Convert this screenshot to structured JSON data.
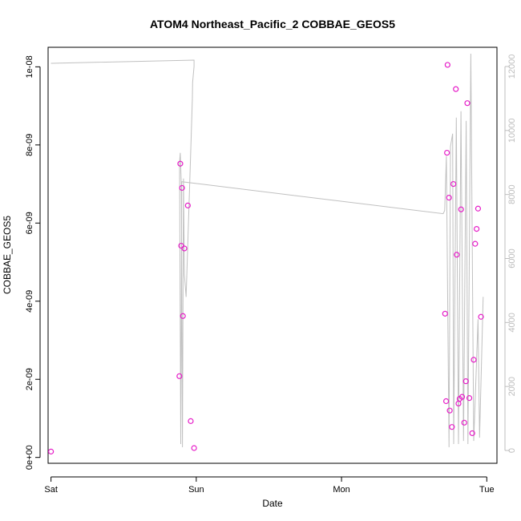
{
  "chart_data": {
    "type": "scatter",
    "title": "ATOM4 Northeast_Pacific_2 COBBAE_GEOS5",
    "xlabel": "Date",
    "ylabel": "COBBAE_GEOS5",
    "x_ticks": [
      "Sat",
      "Sun",
      "Mon",
      "Tue"
    ],
    "xlim": [
      -0.02,
      3.07
    ],
    "ylim": [
      -1.5e-10,
      1.05e-08
    ],
    "y_ticks": [
      {
        "value": 0,
        "label": "0e+00"
      },
      {
        "value": 2e-09,
        "label": "2e-09"
      },
      {
        "value": 4e-09,
        "label": "4e-09"
      },
      {
        "value": 6e-09,
        "label": "6e-09"
      },
      {
        "value": 8e-09,
        "label": "8e-09"
      },
      {
        "value": 1e-08,
        "label": "1e-08"
      }
    ],
    "y2lim": [
      -400,
      12600
    ],
    "y2_ticks": [
      {
        "value": 0,
        "label": "0"
      },
      {
        "value": 2000,
        "label": "2000"
      },
      {
        "value": 4000,
        "label": "4000"
      },
      {
        "value": 6000,
        "label": "6000"
      },
      {
        "value": 8000,
        "label": "8000"
      },
      {
        "value": 10000,
        "label": "10000"
      },
      {
        "value": 12000,
        "label": "12000"
      }
    ],
    "grid": false,
    "colors": {
      "points": "#e61ec8",
      "line": "#c0c0c0"
    },
    "points": [
      {
        "x": 0.0,
        "y": 1.5e-10
      },
      {
        "x": 0.884,
        "y": 2.08e-09
      },
      {
        "x": 0.89,
        "y": 7.52e-09
      },
      {
        "x": 0.896,
        "y": 5.42e-09
      },
      {
        "x": 0.902,
        "y": 6.9e-09
      },
      {
        "x": 0.908,
        "y": 3.62e-09
      },
      {
        "x": 0.918,
        "y": 5.35e-09
      },
      {
        "x": 0.942,
        "y": 6.45e-09
      },
      {
        "x": 0.962,
        "y": 9.3e-10
      },
      {
        "x": 0.985,
        "y": 2.4e-10
      },
      {
        "x": 2.713,
        "y": 3.68e-09
      },
      {
        "x": 2.72,
        "y": 1.44e-09
      },
      {
        "x": 2.726,
        "y": 7.8e-09
      },
      {
        "x": 2.73,
        "y": 1.005e-08
      },
      {
        "x": 2.74,
        "y": 6.65e-09
      },
      {
        "x": 2.745,
        "y": 1.2e-09
      },
      {
        "x": 2.76,
        "y": 7.8e-10
      },
      {
        "x": 2.77,
        "y": 7e-09
      },
      {
        "x": 2.787,
        "y": 9.43e-09
      },
      {
        "x": 2.793,
        "y": 5.19e-09
      },
      {
        "x": 2.805,
        "y": 1.38e-09
      },
      {
        "x": 2.813,
        "y": 1.5e-09
      },
      {
        "x": 2.823,
        "y": 6.35e-09
      },
      {
        "x": 2.83,
        "y": 1.55e-09
      },
      {
        "x": 2.845,
        "y": 8.9e-10
      },
      {
        "x": 2.856,
        "y": 1.95e-09
      },
      {
        "x": 2.866,
        "y": 9.07e-09
      },
      {
        "x": 2.88,
        "y": 1.52e-09
      },
      {
        "x": 2.9,
        "y": 6.2e-10
      },
      {
        "x": 2.91,
        "y": 2.5e-09
      },
      {
        "x": 2.92,
        "y": 5.47e-09
      },
      {
        "x": 2.93,
        "y": 5.85e-09
      },
      {
        "x": 2.94,
        "y": 6.37e-09
      },
      {
        "x": 2.96,
        "y": 3.6e-09
      }
    ],
    "line": [
      [
        0.0,
        12100
      ],
      [
        0.985,
        12200
      ],
      [
        0.985,
        12000
      ],
      [
        0.975,
        11500
      ],
      [
        0.973,
        11000
      ],
      [
        0.965,
        9800
      ],
      [
        0.93,
        4800
      ],
      [
        0.918,
        5500
      ],
      [
        0.912,
        8500
      ],
      [
        0.905,
        100
      ],
      [
        0.897,
        8300
      ],
      [
        0.89,
        9300
      ],
      [
        0.885,
        9000
      ],
      [
        0.893,
        200
      ],
      [
        0.9,
        8400
      ],
      [
        2.7,
        7400
      ],
      [
        2.71,
        7500
      ],
      [
        2.722,
        9200
      ],
      [
        2.74,
        100
      ],
      [
        2.75,
        9500
      ],
      [
        2.765,
        9900
      ],
      [
        2.772,
        200
      ],
      [
        2.79,
        10400
      ],
      [
        2.805,
        200
      ],
      [
        2.822,
        10600
      ],
      [
        2.84,
        300
      ],
      [
        2.858,
        10300
      ],
      [
        2.87,
        200
      ],
      [
        2.89,
        12400
      ],
      [
        2.91,
        300
      ],
      [
        2.94,
        4100
      ],
      [
        2.95,
        400
      ],
      [
        2.975,
        4800
      ]
    ]
  }
}
